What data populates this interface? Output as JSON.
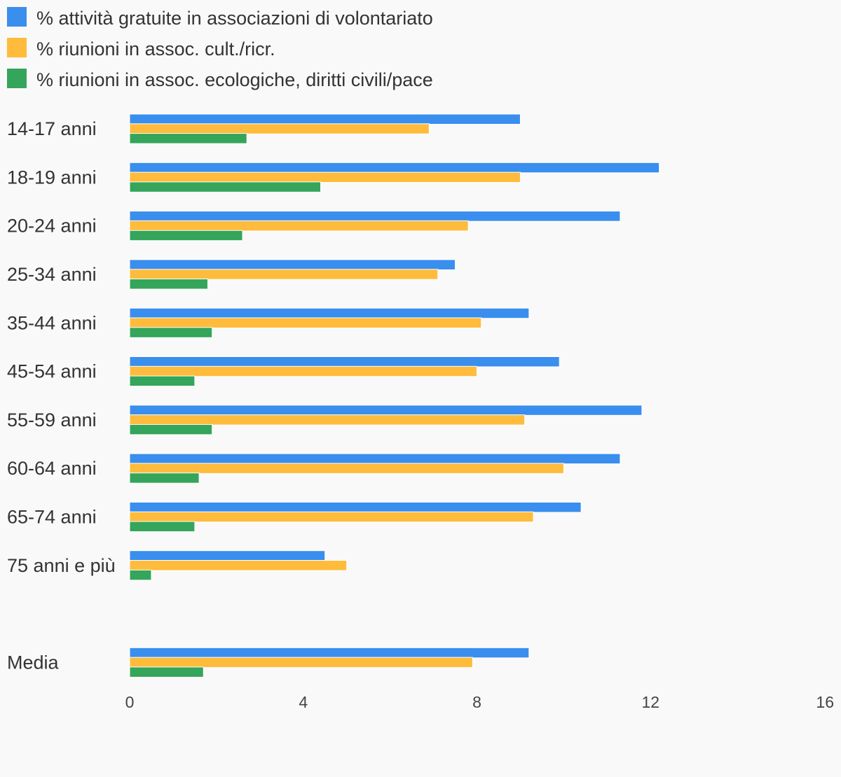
{
  "chart_data": {
    "type": "bar",
    "orientation": "horizontal",
    "title": "",
    "xlabel": "",
    "ylabel": "",
    "xlim": [
      0,
      16
    ],
    "ticks": [
      "0",
      "4",
      "8",
      "12",
      "16"
    ],
    "tick_values": [
      0,
      4,
      8,
      12,
      16
    ],
    "grid": false,
    "legend_position": "top-left",
    "categories": [
      "14-17 anni",
      "18-19 anni",
      "20-24 anni",
      "25-34 anni",
      "35-44 anni",
      "45-54 anni",
      "55-59 anni",
      "60-64 anni",
      "65-74 anni",
      "75 anni e più",
      "",
      "Media"
    ],
    "series": [
      {
        "name": "% attività gratuite in associazioni di volontariato",
        "color": "#3a8eed",
        "values": [
          9.0,
          12.2,
          11.3,
          7.5,
          9.2,
          9.9,
          11.8,
          11.3,
          10.4,
          4.5,
          null,
          9.2
        ]
      },
      {
        "name": "% riunioni in assoc. cult./ricr.",
        "color": "#ffbb3b",
        "values": [
          6.9,
          9.0,
          7.8,
          7.1,
          8.1,
          8.0,
          9.1,
          10.0,
          9.3,
          5.0,
          null,
          7.9
        ]
      },
      {
        "name": "% riunioni in assoc. ecologiche, diritti civili/pace",
        "color": "#34a55a",
        "values": [
          2.7,
          4.4,
          2.6,
          1.8,
          1.9,
          1.5,
          1.9,
          1.6,
          1.5,
          0.5,
          null,
          1.7
        ]
      }
    ]
  }
}
